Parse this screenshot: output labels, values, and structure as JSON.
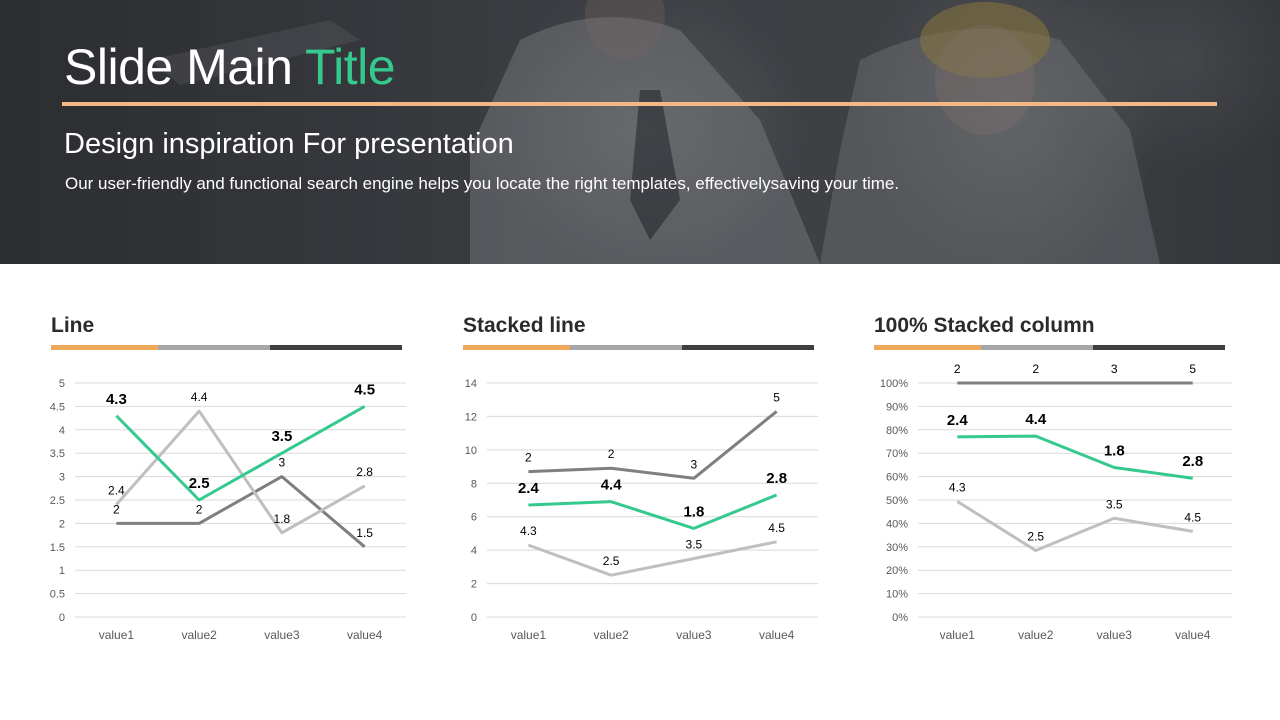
{
  "slide": {
    "title_main": "Slide Main ",
    "title_accent": "Title",
    "subtitle": "Design inspiration For presentation",
    "description": "Our user-friendly and functional search engine helps you locate the right templates, effectivelysaving your time."
  },
  "colors": {
    "accent_green": "#35c98e",
    "accent_orange": "#f4b883",
    "bar_orange": "#f0a95c",
    "bar_gray": "#a6a6a6",
    "bar_dark": "#3f3f3f",
    "series_gray": "#7f7f7f",
    "series_light": "#bfbfbf"
  },
  "chart_data": [
    {
      "type": "line",
      "title": "Line",
      "categories": [
        "value1",
        "value2",
        "value3",
        "value4"
      ],
      "ylim": [
        0,
        5
      ],
      "yticks": [
        "0",
        "0.5",
        "1",
        "1.5",
        "2",
        "2.5",
        "3",
        "3.5",
        "4",
        "4.5",
        "5"
      ],
      "grid": true,
      "legend": "none",
      "series": [
        {
          "values": [
            2,
            2,
            3,
            1.5
          ],
          "labels": [
            "2",
            "2",
            "3",
            "1.5"
          ],
          "color": "#7f7f7f",
          "bold": false
        },
        {
          "values": [
            2.4,
            4.4,
            1.8,
            2.8
          ],
          "labels": [
            "2.4",
            "4.4",
            "1.8",
            "2.8"
          ],
          "color": "#bfbfbf",
          "bold": false
        },
        {
          "values": [
            4.3,
            2.5,
            3.5,
            4.5
          ],
          "labels": [
            "4.3",
            "2.5",
            "3.5",
            "4.5"
          ],
          "color": "#35c98e",
          "bold": true
        }
      ]
    },
    {
      "type": "line",
      "title": "Stacked line",
      "categories": [
        "value1",
        "value2",
        "value3",
        "value4"
      ],
      "ylim": [
        0,
        14
      ],
      "yticks": [
        "0",
        "2",
        "4",
        "6",
        "8",
        "10",
        "12",
        "14"
      ],
      "grid": true,
      "legend": "none",
      "series": [
        {
          "values": [
            4.3,
            2.5,
            3.5,
            4.5
          ],
          "labels": [
            "4.3",
            "2.5",
            "3.5",
            "4.5"
          ],
          "color": "#bfbfbf",
          "bold": false
        },
        {
          "values": [
            6.7,
            6.9,
            5.3,
            7.3
          ],
          "labels": [
            "2.4",
            "4.4",
            "1.8",
            "2.8"
          ],
          "color": "#35c98e",
          "bold": true
        },
        {
          "values": [
            8.7,
            8.9,
            8.3,
            12.3
          ],
          "labels": [
            "2",
            "2",
            "3",
            "5"
          ],
          "color": "#7f7f7f",
          "bold": false
        }
      ]
    },
    {
      "type": "line",
      "title": "100% Stacked column",
      "categories": [
        "value1",
        "value2",
        "value3",
        "value4"
      ],
      "ylim": [
        0,
        100
      ],
      "yticks": [
        "0%",
        "10%",
        "20%",
        "30%",
        "40%",
        "50%",
        "60%",
        "70%",
        "80%",
        "90%",
        "100%"
      ],
      "grid": true,
      "legend": "none",
      "series": [
        {
          "values": [
            49.4,
            28.4,
            42.2,
            36.6
          ],
          "labels": [
            "4.3",
            "2.5",
            "3.5",
            "4.5"
          ],
          "color": "#bfbfbf",
          "bold": false
        },
        {
          "values": [
            77.0,
            77.3,
            63.9,
            59.3
          ],
          "labels": [
            "2.4",
            "4.4",
            "1.8",
            "2.8"
          ],
          "color": "#35c98e",
          "bold": true
        },
        {
          "values": [
            100,
            100,
            100,
            100
          ],
          "labels": [
            "2",
            "2",
            "3",
            "5"
          ],
          "color": "#7f7f7f",
          "bold": false
        }
      ]
    }
  ]
}
